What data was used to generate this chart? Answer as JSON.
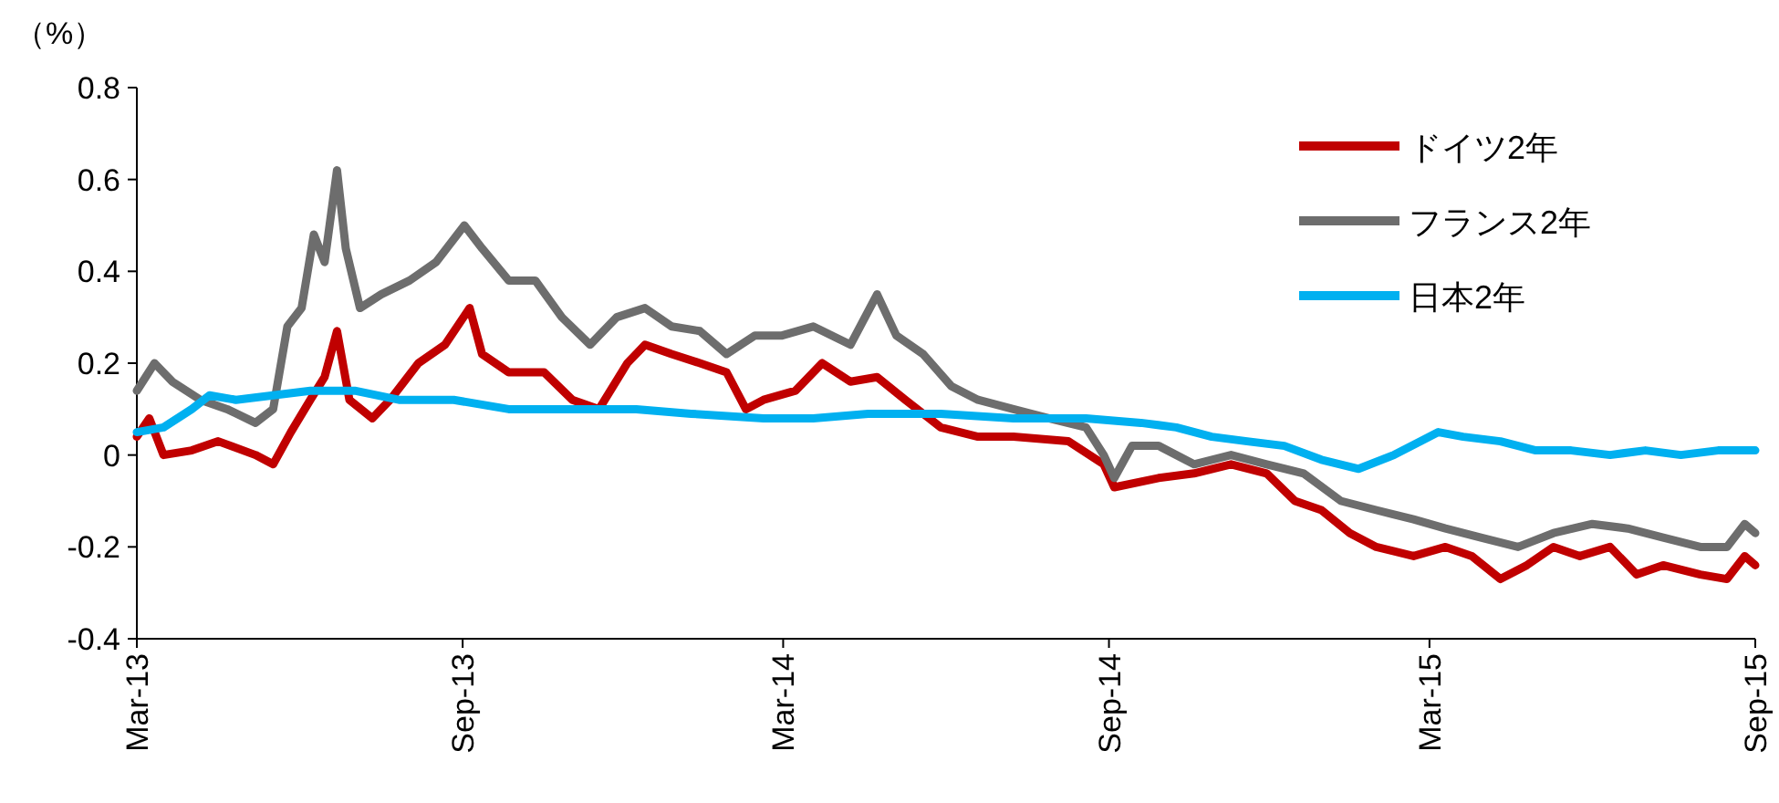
{
  "chart_data": {
    "type": "line",
    "ylabel": "（%）",
    "legend": "top right",
    "xlim": [
      "2013-03-01",
      "2015-09-01"
    ],
    "ylim": [
      -0.4,
      0.8
    ],
    "xticks": [
      {
        "value": "2013-03-01",
        "label": "Mar-13"
      },
      {
        "value": "2013-09-01",
        "label": "Sep-13"
      },
      {
        "value": "2014-03-01",
        "label": "Mar-14"
      },
      {
        "value": "2014-09-01",
        "label": "Sep-14"
      },
      {
        "value": "2015-03-01",
        "label": "Mar-15"
      },
      {
        "value": "2015-09-01",
        "label": "Sep-15"
      }
    ],
    "yticks": [
      -0.4,
      -0.2,
      0,
      0.2,
      0.4,
      0.6,
      0.8
    ],
    "series": [
      {
        "name": "ドイツ2年",
        "color": "#c00000",
        "x": [
          "2013-03-01",
          "2013-03-08",
          "2013-03-16",
          "2013-04-01",
          "2013-04-16",
          "2013-05-07",
          "2013-05-17",
          "2013-05-27",
          "2013-06-07",
          "2013-06-15",
          "2013-06-22",
          "2013-06-29",
          "2013-07-12",
          "2013-07-22",
          "2013-08-07",
          "2013-08-22",
          "2013-09-05",
          "2013-09-12",
          "2013-09-27",
          "2013-10-17",
          "2013-11-02",
          "2013-11-17",
          "2013-12-03",
          "2013-12-13",
          "2013-12-28",
          "2014-01-13",
          "2014-01-28",
          "2014-02-08",
          "2014-02-18",
          "2014-03-08",
          "2014-03-23",
          "2014-04-08",
          "2014-04-23",
          "2014-05-09",
          "2014-05-29",
          "2014-06-19",
          "2014-07-09",
          "2014-08-09",
          "2014-08-29",
          "2014-09-04",
          "2014-09-29",
          "2014-10-19",
          "2014-11-09",
          "2014-11-29",
          "2014-12-15",
          "2014-12-30",
          "2015-01-15",
          "2015-01-30",
          "2015-02-20",
          "2015-03-10",
          "2015-03-25",
          "2015-04-10",
          "2015-04-25",
          "2015-05-10",
          "2015-05-25",
          "2015-06-11",
          "2015-06-26",
          "2015-07-11",
          "2015-08-01",
          "2015-08-16",
          "2015-08-26",
          "2015-09-01"
        ],
        "values": [
          0.04,
          0.08,
          0.0,
          0.01,
          0.03,
          0.0,
          -0.02,
          0.05,
          0.12,
          0.17,
          0.27,
          0.12,
          0.08,
          0.12,
          0.2,
          0.24,
          0.32,
          0.22,
          0.18,
          0.18,
          0.12,
          0.1,
          0.2,
          0.24,
          0.22,
          0.2,
          0.18,
          0.1,
          0.12,
          0.14,
          0.2,
          0.16,
          0.17,
          0.12,
          0.06,
          0.04,
          0.04,
          0.03,
          -0.02,
          -0.07,
          -0.05,
          -0.04,
          -0.02,
          -0.04,
          -0.1,
          -0.12,
          -0.17,
          -0.2,
          -0.22,
          -0.2,
          -0.22,
          -0.27,
          -0.24,
          -0.2,
          -0.22,
          -0.2,
          -0.26,
          -0.24,
          -0.26,
          -0.27,
          -0.22,
          -0.24
        ]
      },
      {
        "name": "フランス2年",
        "color": "#6d6d6d",
        "x": [
          "2013-03-01",
          "2013-03-11",
          "2013-03-21",
          "2013-04-06",
          "2013-04-21",
          "2013-05-07",
          "2013-05-17",
          "2013-05-25",
          "2013-06-02",
          "2013-06-09",
          "2013-06-15",
          "2013-06-22",
          "2013-06-27",
          "2013-07-05",
          "2013-07-17",
          "2013-08-02",
          "2013-08-17",
          "2013-09-02",
          "2013-09-12",
          "2013-09-27",
          "2013-10-12",
          "2013-10-27",
          "2013-11-12",
          "2013-11-27",
          "2013-12-13",
          "2013-12-28",
          "2014-01-13",
          "2014-01-28",
          "2014-02-13",
          "2014-02-28",
          "2014-03-18",
          "2014-04-08",
          "2014-04-23",
          "2014-05-04",
          "2014-05-19",
          "2014-06-04",
          "2014-06-19",
          "2014-07-09",
          "2014-07-29",
          "2014-08-19",
          "2014-08-29",
          "2014-09-04",
          "2014-09-14",
          "2014-09-29",
          "2014-10-19",
          "2014-11-09",
          "2014-11-29",
          "2014-12-20",
          "2015-01-10",
          "2015-01-30",
          "2015-02-20",
          "2015-03-10",
          "2015-03-30",
          "2015-04-20",
          "2015-05-10",
          "2015-06-01",
          "2015-06-21",
          "2015-07-11",
          "2015-08-01",
          "2015-08-16",
          "2015-08-26",
          "2015-09-01"
        ],
        "values": [
          0.14,
          0.2,
          0.16,
          0.12,
          0.1,
          0.07,
          0.1,
          0.28,
          0.32,
          0.48,
          0.42,
          0.62,
          0.45,
          0.32,
          0.35,
          0.38,
          0.42,
          0.5,
          0.45,
          0.38,
          0.38,
          0.3,
          0.24,
          0.3,
          0.32,
          0.28,
          0.27,
          0.22,
          0.26,
          0.26,
          0.28,
          0.24,
          0.35,
          0.26,
          0.22,
          0.15,
          0.12,
          0.1,
          0.08,
          0.06,
          0.0,
          -0.05,
          0.02,
          0.02,
          -0.02,
          0.0,
          -0.02,
          -0.04,
          -0.1,
          -0.12,
          -0.14,
          -0.16,
          -0.18,
          -0.2,
          -0.17,
          -0.15,
          -0.16,
          -0.18,
          -0.2,
          -0.2,
          -0.15,
          -0.17
        ]
      },
      {
        "name": "日本2年",
        "color": "#00b0f0",
        "x": [
          "2013-03-01",
          "2013-03-16",
          "2013-04-01",
          "2013-04-11",
          "2013-04-26",
          "2013-05-17",
          "2013-06-07",
          "2013-07-02",
          "2013-07-27",
          "2013-08-27",
          "2013-09-27",
          "2013-10-27",
          "2013-12-08",
          "2014-01-08",
          "2014-02-18",
          "2014-03-18",
          "2014-04-18",
          "2014-05-29",
          "2014-07-09",
          "2014-08-19",
          "2014-09-19",
          "2014-10-09",
          "2014-10-29",
          "2014-11-18",
          "2014-12-09",
          "2014-12-30",
          "2015-01-20",
          "2015-02-09",
          "2015-02-24",
          "2015-03-06",
          "2015-03-20",
          "2015-04-10",
          "2015-04-30",
          "2015-05-20",
          "2015-06-11",
          "2015-07-01",
          "2015-07-21",
          "2015-08-11",
          "2015-09-01"
        ],
        "values": [
          0.05,
          0.06,
          0.1,
          0.13,
          0.12,
          0.13,
          0.14,
          0.14,
          0.12,
          0.12,
          0.1,
          0.1,
          0.1,
          0.09,
          0.08,
          0.08,
          0.09,
          0.09,
          0.08,
          0.08,
          0.07,
          0.06,
          0.04,
          0.03,
          0.02,
          -0.01,
          -0.03,
          0.0,
          0.03,
          0.05,
          0.04,
          0.03,
          0.01,
          0.01,
          0.0,
          0.01,
          0.0,
          0.01,
          0.01
        ]
      }
    ]
  }
}
